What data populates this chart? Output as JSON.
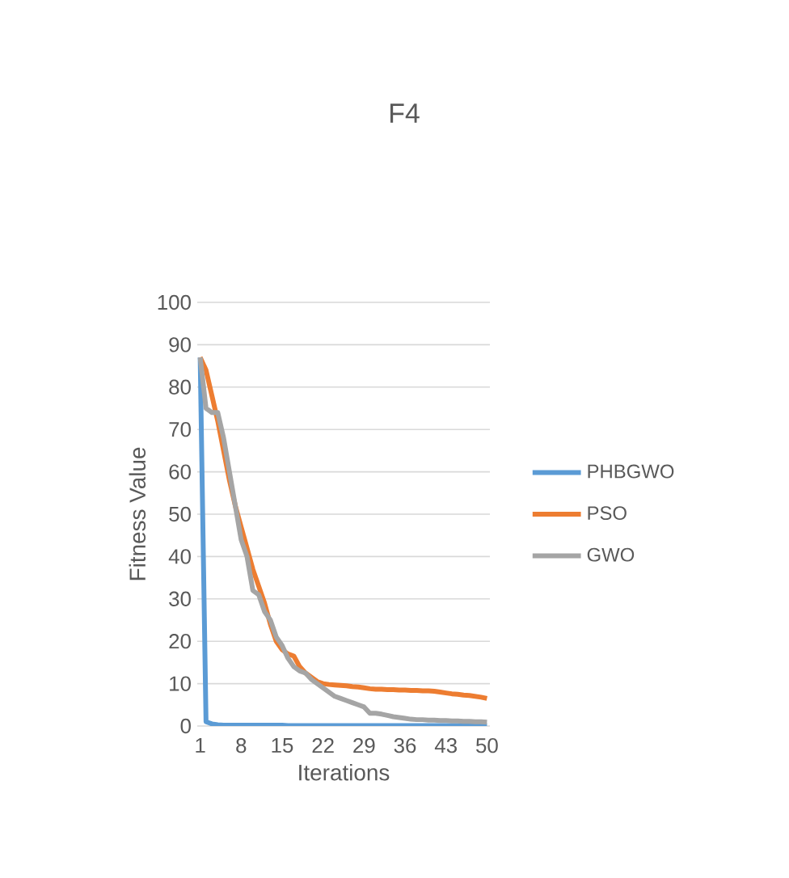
{
  "chart_data": {
    "type": "line",
    "title": "F4",
    "xlabel": "Iterations",
    "ylabel": "Fitness Value",
    "categories": [
      "1",
      null,
      null,
      null,
      null,
      null,
      null,
      "8",
      null,
      null,
      null,
      null,
      null,
      null,
      "15",
      null,
      null,
      null,
      null,
      null,
      null,
      "22",
      null,
      null,
      null,
      null,
      null,
      null,
      "29",
      null,
      null,
      null,
      null,
      null,
      null,
      "36",
      null,
      null,
      null,
      null,
      null,
      null,
      "43",
      null,
      null,
      null,
      null,
      null,
      null,
      "50"
    ],
    "series": [
      {
        "name": "PHBGWO",
        "color": "#5b9bd5",
        "values": [
          87,
          1,
          0.5,
          0.3,
          0.2,
          0.2,
          0.2,
          0.2,
          0.2,
          0.2,
          0.2,
          0.2,
          0.2,
          0.2,
          0.2,
          0.1,
          0.1,
          0.1,
          0.1,
          0.1,
          0.1,
          0.1,
          0.1,
          0.1,
          0.1,
          0.1,
          0.1,
          0.1,
          0.1,
          0.1,
          0.1,
          0.1,
          0.1,
          0.1,
          0.1,
          0.1,
          0.1,
          0.1,
          0.1,
          0.1,
          0.1,
          0.1,
          0.1,
          0.1,
          0.1,
          0.1,
          0.1,
          0.1,
          0.1,
          0.1
        ]
      },
      {
        "name": "PSO",
        "color": "#ed7d31",
        "values": [
          87,
          84,
          78,
          72,
          65,
          58,
          52,
          47,
          42,
          37,
          33,
          29,
          24,
          20,
          18,
          17,
          16.5,
          14,
          12.5,
          11.5,
          10.5,
          10,
          9.8,
          9.7,
          9.6,
          9.5,
          9.3,
          9.2,
          9,
          8.8,
          8.7,
          8.7,
          8.6,
          8.6,
          8.5,
          8.5,
          8.4,
          8.4,
          8.3,
          8.3,
          8.2,
          8,
          7.8,
          7.6,
          7.5,
          7.3,
          7.2,
          7,
          6.8,
          6.5
        ]
      },
      {
        "name": "GWO",
        "color": "#a5a5a5",
        "values": [
          87,
          75,
          74,
          74,
          68,
          60,
          52,
          44,
          40,
          32,
          31,
          27,
          25,
          21,
          19,
          16,
          14,
          13,
          12.5,
          11,
          10,
          9,
          8,
          7,
          6.5,
          6,
          5.5,
          5,
          4.5,
          3,
          3,
          2.8,
          2.5,
          2.2,
          2,
          1.8,
          1.6,
          1.5,
          1.5,
          1.4,
          1.4,
          1.3,
          1.3,
          1.2,
          1.2,
          1.1,
          1.1,
          1,
          1,
          0.9
        ]
      }
    ],
    "ylim": [
      0,
      100
    ],
    "yticks": [
      0,
      10,
      20,
      30,
      40,
      50,
      60,
      70,
      80,
      90,
      100
    ],
    "grid": "y",
    "legend": "right",
    "marker": "none",
    "line_style": "solid"
  }
}
